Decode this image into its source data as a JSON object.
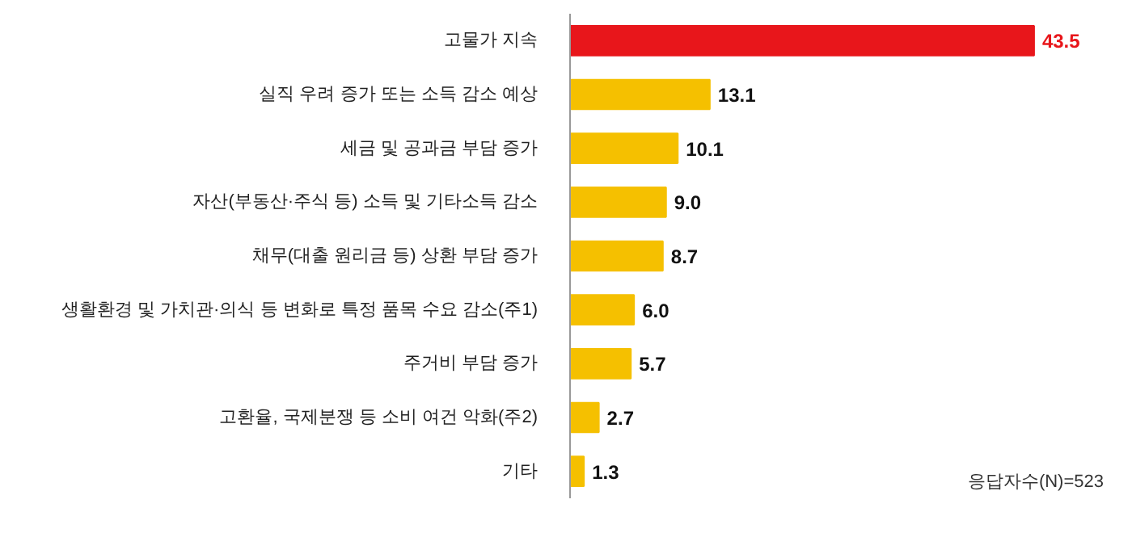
{
  "chart_data": {
    "type": "bar",
    "orientation": "horizontal",
    "categories": [
      "고물가 지속",
      "실직 우려 증가 또는 소득 감소 예상",
      "세금 및 공과금 부담 증가",
      "자산(부동산·주식 등) 소득 및 기타소득 감소",
      "채무(대출 원리금 등) 상환 부담 증가",
      "생활환경 및 가치관·의식 등 변화로 특정 품목 수요 감소(주1)",
      "주거비 부담 증가",
      "고환율, 국제분쟁 등 소비 여건 악화(주2)",
      "기타"
    ],
    "values": [
      43.5,
      13.1,
      10.1,
      9.0,
      8.7,
      6.0,
      5.7,
      2.7,
      1.3
    ],
    "value_labels": [
      "43.5",
      "13.1",
      "10.1",
      "9.0",
      "8.7",
      "6.0",
      "5.7",
      "2.7",
      "1.3"
    ],
    "colors": [
      "#e8161b",
      "#f5c000",
      "#f5c000",
      "#f5c000",
      "#f5c000",
      "#f5c000",
      "#f5c000",
      "#f5c000",
      "#f5c000"
    ],
    "annotations": [
      "응답자수(N)=523"
    ]
  }
}
